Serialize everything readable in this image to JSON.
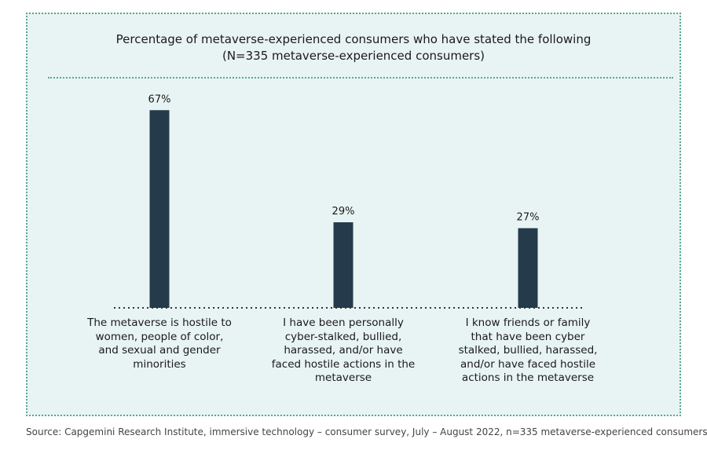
{
  "chart_data": {
    "type": "bar",
    "title": "Percentage of metaverse-experienced consumers who have stated the following",
    "subtitle": "(N=335 metaverse-experienced consumers)",
    "categories": [
      "The metaverse is hostile to women, people of color, and sexual and gender minorities",
      "I have been personally cyber-stalked, bullied, harassed, and/or have faced hostile actions in the metaverse",
      "I know friends or family that have been cyber stalked, bullied, harassed, and/or have faced hostile actions in the metaverse"
    ],
    "values": [
      67,
      29,
      27
    ],
    "value_labels": [
      "67%",
      "29%",
      "27%"
    ],
    "ylim": [
      0,
      70
    ],
    "xlabel": "",
    "ylabel": "",
    "grid": false
  },
  "colors": {
    "bar": "#253b4b",
    "panel_bg": "#e8f4f3",
    "accent": "#5aa88e"
  },
  "source": "Source: Capgemini Research Institute, immersive technology – consumer survey, July – August 2022, n=335 metaverse-experienced consumers."
}
